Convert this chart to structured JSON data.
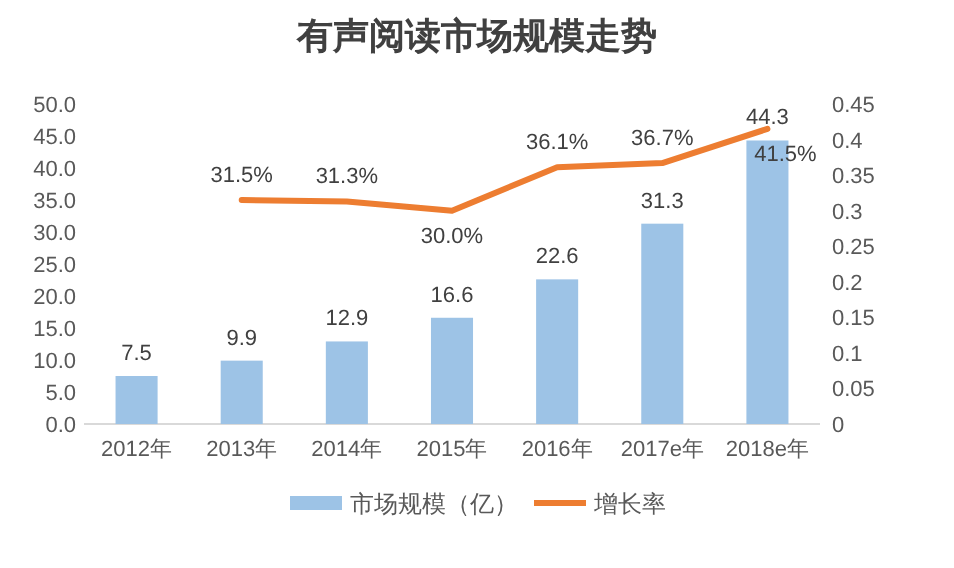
{
  "chart_data": {
    "type": "bar",
    "title": "有声阅读市场规模走势",
    "categories": [
      "2012年",
      "2013年",
      "2014年",
      "2015年",
      "2016年",
      "2017e年",
      "2018e年"
    ],
    "series": [
      {
        "name": "市场规模（亿）",
        "color": "#9dc3e6",
        "values": [
          7.5,
          9.9,
          12.9,
          16.6,
          22.6,
          31.3,
          44.3
        ],
        "value_labels": [
          "7.5",
          "9.9",
          "12.9",
          "16.6",
          "22.6",
          "31.3",
          "44.3"
        ]
      },
      {
        "name": "增长率",
        "type": "line",
        "axis": "y2",
        "color": "#ed7d31",
        "values": [
          null,
          0.315,
          0.313,
          0.3,
          0.361,
          0.367,
          0.415
        ],
        "value_labels": [
          null,
          "31.5%",
          "31.3%",
          "30.0%",
          "36.1%",
          "36.7%",
          "41.5%"
        ]
      }
    ],
    "ylim": [
      0,
      50
    ],
    "yticks": [
      {
        "value": 0,
        "label": "0.0"
      },
      {
        "value": 5,
        "label": "5.0"
      },
      {
        "value": 10,
        "label": "10.0"
      },
      {
        "value": 15,
        "label": "15.0"
      },
      {
        "value": 20,
        "label": "20.0"
      },
      {
        "value": 25,
        "label": "25.0"
      },
      {
        "value": 30,
        "label": "30.0"
      },
      {
        "value": 35,
        "label": "35.0"
      },
      {
        "value": 40,
        "label": "40.0"
      },
      {
        "value": 45,
        "label": "45.0"
      },
      {
        "value": 50,
        "label": "50.0"
      }
    ],
    "y2lim": [
      0,
      0.45
    ],
    "y2ticks": [
      0,
      0.05,
      0.1,
      0.15,
      0.2,
      0.25,
      0.3,
      0.35,
      0.4,
      0.45
    ],
    "legend": "bottom",
    "grid": false
  }
}
